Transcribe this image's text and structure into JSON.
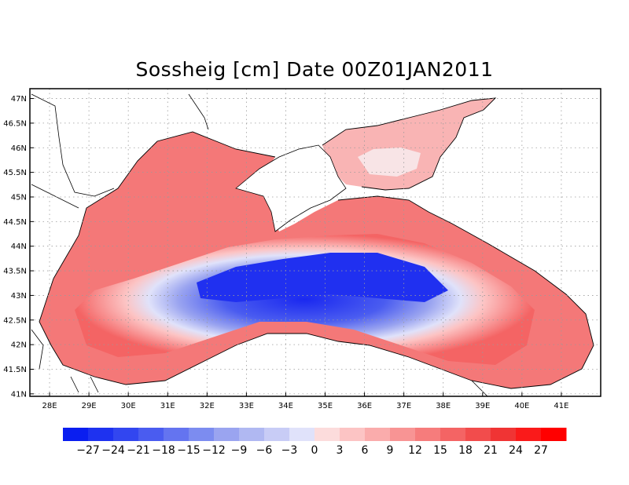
{
  "title": "Sossheig [cm] Date 00Z01JAN2011",
  "map": {
    "lon_labels": [
      "28E",
      "29E",
      "30E",
      "31E",
      "32E",
      "33E",
      "34E",
      "35E",
      "36E",
      "37E",
      "38E",
      "39E",
      "40E",
      "41E"
    ],
    "lat_labels": [
      "47N",
      "46.5N",
      "46N",
      "45.5N",
      "45N",
      "44.5N",
      "44N",
      "43.5N",
      "43N",
      "42.5N",
      "42N",
      "41.5N",
      "41N"
    ],
    "lon_range": [
      27.5,
      42.0
    ],
    "lat_range": [
      40.95,
      47.2
    ],
    "gridlines": true
  },
  "colorbar": {
    "labels": [
      "-27",
      "-24",
      "-21",
      "-18",
      "-15",
      "-12",
      "-9",
      "-6",
      "-3",
      "0",
      "3",
      "6",
      "9",
      "12",
      "15",
      "18",
      "21",
      "24",
      "27"
    ],
    "colors": [
      "#0a1ef0",
      "#1e32f0",
      "#3246f0",
      "#4a5cf0",
      "#6474f0",
      "#7c8cf0",
      "#9aa4f0",
      "#b0b8f2",
      "#c8ccf6",
      "#e0e2fa",
      "#fcdcdc",
      "#fcc4c4",
      "#faacac",
      "#f89494",
      "#f67c7c",
      "#f46464",
      "#f24c4c",
      "#f03434",
      "#fa1a1a",
      "#ff0000"
    ]
  },
  "colors": {
    "sea_center": "#1a28f0",
    "sea_coast": "#f46464",
    "land": "#ffffff"
  }
}
